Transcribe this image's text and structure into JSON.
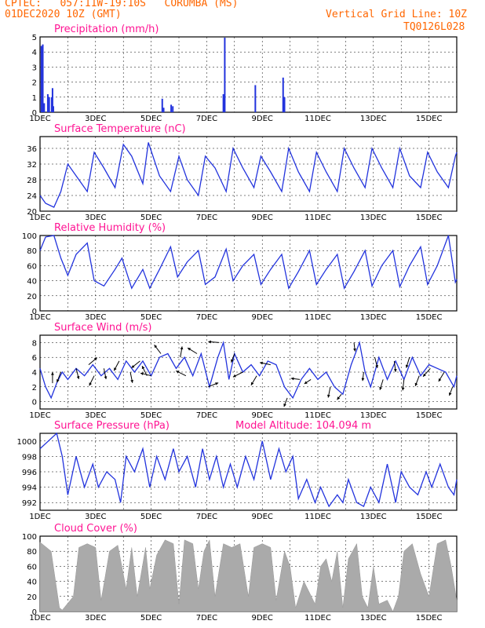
{
  "header": {
    "line1": "CPTEC:   057:11W-19:10S   CORUMBA (MS)",
    "line2": "01DEC2020 10Z (GMT)",
    "right1": "Vertical Grid Line: 10Z",
    "right2": "TQ0126L028"
  },
  "colors": {
    "series": "#2233dd",
    "cloud": "#aaaaaa",
    "header": "#ff6600",
    "title": "#ff1493"
  },
  "date_labels": [
    "1DEC",
    "3DEC",
    "5DEC",
    "7DEC",
    "9DEC",
    "11DEC",
    "13DEC",
    "15DEC"
  ],
  "date_days": [
    1,
    3,
    5,
    7,
    9,
    11,
    13,
    15
  ],
  "x_range_days": [
    1,
    16
  ],
  "chart_data": [
    {
      "type": "bar",
      "title": "Precipitation  (mm/h)",
      "ylim": [
        0,
        5
      ],
      "yticks": [
        "0",
        "1",
        "2",
        "3",
        "4",
        "5"
      ],
      "bars": [
        {
          "day": 1.05,
          "value": 4.4
        },
        {
          "day": 1.1,
          "value": 4.5
        },
        {
          "day": 1.15,
          "value": 0.6
        },
        {
          "day": 1.28,
          "value": 1.2
        },
        {
          "day": 1.33,
          "value": 1.0
        },
        {
          "day": 1.42,
          "value": 1.0
        },
        {
          "day": 1.45,
          "value": 1.6
        },
        {
          "day": 1.48,
          "value": 0.4
        },
        {
          "day": 5.4,
          "value": 0.9
        },
        {
          "day": 5.45,
          "value": 0.3
        },
        {
          "day": 5.72,
          "value": 0.5
        },
        {
          "day": 5.78,
          "value": 0.4
        },
        {
          "day": 7.6,
          "value": 1.2
        },
        {
          "day": 7.65,
          "value": 4.95
        },
        {
          "day": 8.75,
          "value": 1.8
        },
        {
          "day": 9.75,
          "value": 2.3
        },
        {
          "day": 9.8,
          "value": 1.0
        }
      ]
    },
    {
      "type": "line",
      "title": "Surface Temperature  (nC)",
      "ylim": [
        20,
        39
      ],
      "yticks": [
        "20",
        "24",
        "28",
        "32",
        "36"
      ],
      "ytick_values": [
        20,
        24,
        28,
        32,
        36
      ],
      "days": [
        1,
        1.2,
        1.5,
        1.75,
        2.0,
        2.3,
        2.7,
        2.95,
        3.3,
        3.7,
        4.0,
        4.3,
        4.7,
        4.9,
        5.3,
        5.7,
        6.0,
        6.3,
        6.7,
        6.95,
        7.3,
        7.7,
        7.95,
        8.3,
        8.7,
        8.95,
        9.3,
        9.7,
        9.95,
        10.3,
        10.7,
        10.95,
        11.3,
        11.7,
        11.95,
        12.3,
        12.7,
        12.95,
        13.3,
        13.7,
        13.95,
        14.3,
        14.7,
        14.95,
        15.3,
        15.7,
        15.95,
        16.0
      ],
      "values": [
        24,
        22,
        21,
        25,
        32,
        29,
        25,
        35,
        31,
        26,
        37,
        34,
        27,
        37.5,
        29,
        25,
        34,
        28,
        24,
        34,
        31,
        25,
        36,
        31,
        26,
        34,
        30,
        25,
        36,
        30,
        25,
        35,
        30,
        25,
        36,
        31,
        26,
        36,
        31,
        26,
        36,
        29,
        26,
        35,
        30,
        26,
        34,
        35
      ]
    },
    {
      "type": "line",
      "title": "Relative Humidity  (%)",
      "ylim": [
        0,
        100
      ],
      "yticks": [
        "0",
        "20",
        "40",
        "60",
        "80",
        "100"
      ],
      "ytick_values": [
        0,
        20,
        40,
        60,
        80,
        100
      ],
      "days": [
        1,
        1.2,
        1.5,
        1.75,
        2.0,
        2.3,
        2.7,
        2.95,
        3.3,
        3.7,
        3.95,
        4.3,
        4.7,
        4.95,
        5.3,
        5.7,
        5.95,
        6.3,
        6.7,
        6.95,
        7.3,
        7.7,
        7.95,
        8.3,
        8.7,
        8.95,
        9.3,
        9.7,
        9.95,
        10.3,
        10.7,
        10.95,
        11.3,
        11.7,
        11.95,
        12.3,
        12.7,
        12.95,
        13.3,
        13.7,
        13.95,
        14.3,
        14.7,
        14.95,
        15.3,
        15.7,
        15.95,
        16.0
      ],
      "values": [
        80,
        98,
        100,
        70,
        47,
        75,
        90,
        40,
        33,
        55,
        70,
        30,
        55,
        30,
        55,
        85,
        45,
        65,
        80,
        35,
        45,
        82,
        40,
        60,
        75,
        35,
        55,
        75,
        30,
        52,
        80,
        35,
        55,
        75,
        30,
        52,
        80,
        33,
        60,
        80,
        32,
        60,
        85,
        35,
        60,
        100,
        38,
        42
      ]
    },
    {
      "type": "line",
      "title": "Surface Wind  (m/s)",
      "ylim": [
        -1,
        9
      ],
      "yticks": [
        "0",
        "2",
        "4",
        "6",
        "8"
      ],
      "ytick_values": [
        0,
        2,
        4,
        6,
        8
      ],
      "days": [
        1,
        1.2,
        1.4,
        1.6,
        1.8,
        2.0,
        2.3,
        2.6,
        2.9,
        3.2,
        3.5,
        3.8,
        4.1,
        4.4,
        4.7,
        5.0,
        5.3,
        5.6,
        5.9,
        6.2,
        6.5,
        6.8,
        7.1,
        7.4,
        7.6,
        7.8,
        8.0,
        8.3,
        8.6,
        8.9,
        9.2,
        9.5,
        9.8,
        10.1,
        10.4,
        10.7,
        11.0,
        11.3,
        11.6,
        11.9,
        12.2,
        12.5,
        12.7,
        12.9,
        13.2,
        13.5,
        13.8,
        14.1,
        14.4,
        14.7,
        15.0,
        15.3,
        15.6,
        15.9,
        16.0
      ],
      "values": [
        4.5,
        2.0,
        0.5,
        2.5,
        4.0,
        3.0,
        4.5,
        3.5,
        5.0,
        3.5,
        4.5,
        3.0,
        5.5,
        4.0,
        5.5,
        3.5,
        6.0,
        6.5,
        4.5,
        6.0,
        3.5,
        6.5,
        2.0,
        6.0,
        8.0,
        3.0,
        6.5,
        4.0,
        5.0,
        3.5,
        5.5,
        5.0,
        2.0,
        0.5,
        3.0,
        4.5,
        3.0,
        4.0,
        2.0,
        1.0,
        5.0,
        8.0,
        4.0,
        2.0,
        6.0,
        3.0,
        5.5,
        3.0,
        6.0,
        3.5,
        5.0,
        4.5,
        4.0,
        2.0,
        3.5
      ],
      "arrows": [
        {
          "day": 1.45,
          "u": 0.0,
          "v": 1.0
        },
        {
          "day": 1.75,
          "u": -0.5,
          "v": -1.3
        },
        {
          "day": 2.3,
          "u": 0.3,
          "v": -1.2
        },
        {
          "day": 2.75,
          "u": 1.2,
          "v": 1.0
        },
        {
          "day": 2.95,
          "u": -0.6,
          "v": -1.2
        },
        {
          "day": 3.3,
          "u": 0.2,
          "v": -1.0
        },
        {
          "day": 3.85,
          "u": -0.8,
          "v": -1.5
        },
        {
          "day": 4.25,
          "u": 0.2,
          "v": -1.0
        },
        {
          "day": 4.6,
          "u": -1.5,
          "v": -1.2
        },
        {
          "day": 4.85,
          "u": -0.5,
          "v": 1.0
        },
        {
          "day": 5.0,
          "u": -1.2,
          "v": 0.3
        },
        {
          "day": 5.35,
          "u": -0.6,
          "v": 0.8
        },
        {
          "day": 6.05,
          "u": 0.2,
          "v": 1.2
        },
        {
          "day": 6.25,
          "u": -1.2,
          "v": 0.6
        },
        {
          "day": 6.65,
          "u": -1.3,
          "v": 0.8
        },
        {
          "day": 7.05,
          "u": 2.0,
          "v": 0.8
        },
        {
          "day": 7.45,
          "u": -1.2,
          "v": 0.1
        },
        {
          "day": 8.0,
          "u": -0.3,
          "v": -0.8
        },
        {
          "day": 8.3,
          "u": -1.0,
          "v": -0.5
        },
        {
          "day": 8.8,
          "u": -0.6,
          "v": -1.0
        },
        {
          "day": 9.3,
          "u": -1.0,
          "v": 0.2
        },
        {
          "day": 9.9,
          "u": -0.3,
          "v": -0.8
        },
        {
          "day": 10.35,
          "u": -0.8,
          "v": 0.1
        },
        {
          "day": 10.75,
          "u": -0.6,
          "v": -0.4
        },
        {
          "day": 11.45,
          "u": -0.2,
          "v": -1.0
        },
        {
          "day": 11.85,
          "u": -0.4,
          "v": -0.5
        },
        {
          "day": 12.3,
          "u": 0.1,
          "v": -0.8
        },
        {
          "day": 12.65,
          "u": -0.1,
          "v": -0.8
        },
        {
          "day": 13.05,
          "u": 0.4,
          "v": -1.6
        },
        {
          "day": 13.35,
          "u": -0.4,
          "v": -1.3
        },
        {
          "day": 13.75,
          "u": 0.2,
          "v": -1.5
        },
        {
          "day": 14.1,
          "u": -0.2,
          "v": -1.8
        },
        {
          "day": 14.3,
          "u": -0.5,
          "v": -1.6
        },
        {
          "day": 14.65,
          "u": -0.5,
          "v": -1.3
        },
        {
          "day": 15.05,
          "u": -0.8,
          "v": -0.9
        },
        {
          "day": 15.55,
          "u": -0.6,
          "v": -1.0
        },
        {
          "day": 15.85,
          "u": -0.3,
          "v": -0.8
        }
      ]
    },
    {
      "type": "line",
      "title": "Surface Pressure  (hPa)",
      "annotation": "Model Altitude: 104.094  m",
      "ylim": [
        991,
        1001
      ],
      "yticks": [
        "992",
        "994",
        "996",
        "998",
        "1000"
      ],
      "ytick_values": [
        992,
        994,
        996,
        998,
        1000
      ],
      "days": [
        1,
        1.3,
        1.6,
        1.8,
        2.0,
        2.3,
        2.6,
        2.9,
        3.1,
        3.4,
        3.7,
        3.9,
        4.1,
        4.4,
        4.7,
        4.95,
        5.2,
        5.5,
        5.8,
        6.0,
        6.3,
        6.6,
        6.85,
        7.1,
        7.35,
        7.6,
        7.85,
        8.1,
        8.4,
        8.7,
        9.0,
        9.3,
        9.6,
        9.85,
        10.1,
        10.3,
        10.6,
        10.9,
        11.1,
        11.4,
        11.7,
        11.9,
        12.1,
        12.4,
        12.65,
        12.9,
        13.2,
        13.5,
        13.8,
        14.0,
        14.3,
        14.6,
        14.9,
        15.1,
        15.4,
        15.7,
        15.9,
        16.0
      ],
      "values": [
        999,
        1000,
        1001,
        998,
        993,
        998,
        994,
        997,
        994,
        996,
        995,
        992,
        998,
        996,
        999,
        994,
        998,
        995,
        999,
        996,
        998,
        994,
        999,
        995,
        998,
        994,
        997,
        994,
        998,
        995,
        1000,
        995,
        999,
        996,
        998,
        992.5,
        995,
        992,
        994,
        991.5,
        993,
        992,
        995,
        992,
        991.5,
        994,
        992,
        997,
        992,
        996,
        994,
        993,
        996,
        994,
        997,
        994,
        993,
        995
      ]
    },
    {
      "type": "area",
      "title": "Cloud Cover  (%)",
      "ylim": [
        0,
        100
      ],
      "yticks": [
        "0",
        "20",
        "40",
        "60",
        "80",
        "100"
      ],
      "ytick_values": [
        0,
        20,
        40,
        60,
        80,
        100
      ],
      "days": [
        1,
        1.4,
        1.7,
        1.8,
        2.2,
        2.4,
        2.7,
        3.0,
        3.2,
        3.5,
        3.8,
        4.1,
        4.3,
        4.5,
        4.8,
        4.95,
        5.2,
        5.5,
        5.8,
        6.0,
        6.2,
        6.5,
        6.7,
        6.9,
        7.1,
        7.3,
        7.6,
        7.9,
        8.2,
        8.5,
        8.7,
        9.0,
        9.3,
        9.5,
        9.8,
        10.0,
        10.2,
        10.5,
        10.7,
        10.9,
        11.1,
        11.3,
        11.5,
        11.7,
        11.9,
        12.1,
        12.4,
        12.6,
        12.8,
        13.0,
        13.2,
        13.5,
        13.7,
        13.9,
        14.1,
        14.4,
        14.7,
        15.0,
        15.3,
        15.6,
        15.8,
        16.0
      ],
      "values": [
        92,
        80,
        5,
        2,
        20,
        85,
        90,
        85,
        15,
        80,
        88,
        30,
        85,
        20,
        85,
        30,
        75,
        95,
        90,
        10,
        95,
        90,
        30,
        80,
        95,
        20,
        90,
        85,
        90,
        20,
        85,
        90,
        85,
        15,
        80,
        60,
        5,
        40,
        25,
        10,
        60,
        70,
        40,
        80,
        5,
        70,
        90,
        20,
        5,
        60,
        10,
        15,
        0,
        20,
        80,
        90,
        50,
        20,
        90,
        95,
        60,
        15
      ]
    }
  ]
}
